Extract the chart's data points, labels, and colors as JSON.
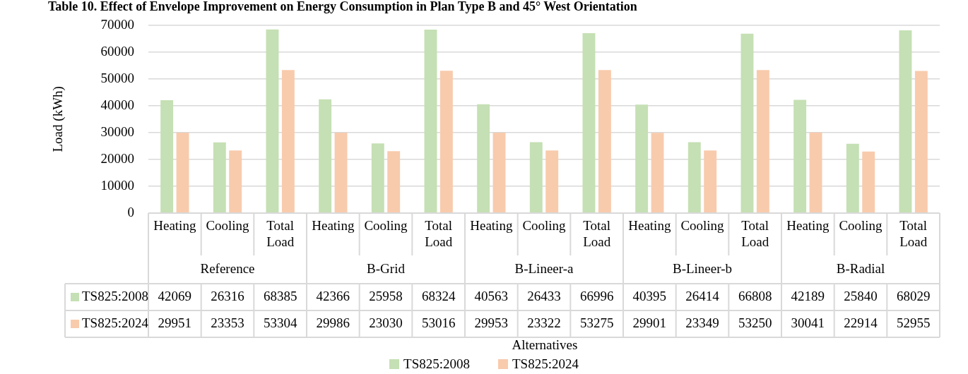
{
  "chart_data": {
    "type": "bar",
    "title": "Table 10. Effect of Envelope Improvement on Energy Consumption in Plan Type B and 45° West Orientation",
    "ylabel": "Load (kWh)",
    "categories": [
      "Heating",
      "Cooling",
      "Total Load",
      "Heating",
      "Cooling",
      "Total Load",
      "Heating",
      "Cooling",
      "Total Load",
      "Heating",
      "Cooling",
      "Total Load",
      "Heating",
      "Cooling",
      "Total Load"
    ],
    "annotations": [
      "Reference",
      "B-Grid",
      "B-Lineer-a",
      "B-Lineer-b",
      "B-Radial",
      "Alternatives"
    ],
    "series": [
      {
        "name": "TS825:2008",
        "color": "#c5e0b4",
        "values": [
          42069,
          26316,
          68385,
          42366,
          25958,
          68324,
          40563,
          26433,
          66996,
          40395,
          26414,
          66808,
          42189,
          25840,
          68029
        ]
      },
      {
        "name": "TS825:2024",
        "color": "#f8cbad",
        "values": [
          29951,
          23353,
          53304,
          29986,
          23030,
          53016,
          29953,
          23322,
          53275,
          29901,
          23349,
          53250,
          30041,
          22914,
          52955
        ]
      }
    ],
    "ylim": [
      0,
      70000
    ],
    "yticks": [
      0,
      10000,
      20000,
      30000,
      40000,
      50000,
      60000,
      70000
    ],
    "grid": "y",
    "legend": "bottom",
    "data_labels": true
  }
}
